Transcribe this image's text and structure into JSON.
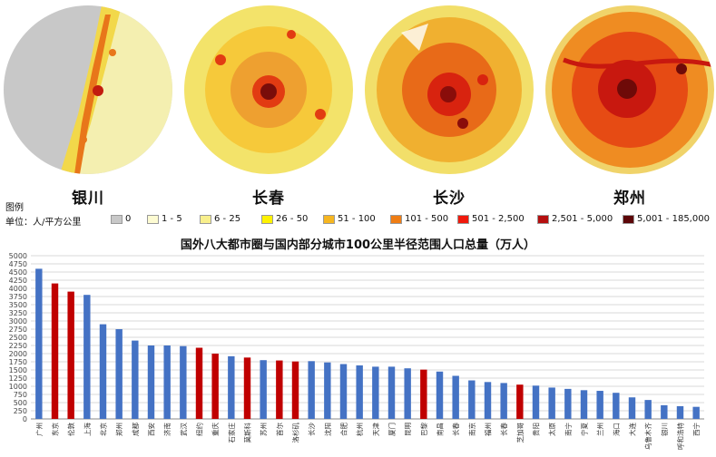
{
  "maps": [
    {
      "city": "银川",
      "colors": {
        "base": "#c8c8c8",
        "land": "#f4efb0",
        "mid": "#f2d84a",
        "hot": "#e8761a",
        "core": "#c21b0f"
      }
    },
    {
      "city": "长春",
      "colors": {
        "base": "#f3e36a",
        "land": "#f6c93a",
        "mid": "#eea030",
        "hot": "#e23b12",
        "core": "#7a0d0a"
      }
    },
    {
      "city": "长沙",
      "colors": {
        "base": "#f2df6a",
        "land": "#f0b030",
        "mid": "#e86a18",
        "hot": "#d8230f",
        "core": "#8a0d0a"
      }
    },
    {
      "city": "郑州",
      "colors": {
        "base": "#f0d36a",
        "land": "#ef8c22",
        "mid": "#e64b14",
        "hot": "#c8180f",
        "core": "#6e0a08"
      }
    }
  ],
  "legend": {
    "heading": "图例",
    "unit": "单位：人/平方公里",
    "items": [
      {
        "label": "0",
        "color": "#c8c8c8"
      },
      {
        "label": "1 - 5",
        "color": "#fdfbd2"
      },
      {
        "label": "6 - 25",
        "color": "#f8ef8c"
      },
      {
        "label": "26 - 50",
        "color": "#fef200"
      },
      {
        "label": "51 - 100",
        "color": "#f6b620"
      },
      {
        "label": "101 - 500",
        "color": "#ef7d14"
      },
      {
        "label": "501 - 2,500",
        "color": "#f0190c"
      },
      {
        "label": "2,501 - 5,000",
        "color": "#b50f0f"
      },
      {
        "label": "5,001 - 185,000",
        "color": "#5c0608"
      }
    ]
  },
  "chart_data": {
    "type": "bar",
    "title": "国外八大都市圈与国内部分城市100公里半径范围人口总量（万人）",
    "ylim": [
      0,
      5000
    ],
    "yticks": [
      0,
      250,
      500,
      750,
      1000,
      1250,
      1500,
      1750,
      2000,
      2250,
      2500,
      2750,
      3000,
      3250,
      3500,
      3750,
      4000,
      4250,
      4500,
      4750,
      5000
    ],
    "colors": {
      "domestic": "#4472c4",
      "foreign": "#c00000"
    },
    "categories": [
      "广州",
      "东京",
      "伦敦",
      "上海",
      "北京",
      "郑州",
      "成都",
      "西安",
      "济南",
      "武汉",
      "纽约",
      "重庆",
      "石家庄",
      "莫斯科",
      "苏州",
      "首尔",
      "洛杉矶",
      "长沙",
      "沈阳",
      "合肥",
      "杭州",
      "天津",
      "厦门",
      "昆明",
      "巴黎",
      "南昌",
      "长春",
      "南京",
      "福州",
      "长春",
      "芝加哥",
      "贵阳",
      "太原",
      "南宁",
      "宁夏",
      "兰州",
      "海口",
      "大连",
      "乌鲁木齐",
      "银川",
      "呼和浩特",
      "西宁"
    ],
    "values": [
      4600,
      4150,
      3900,
      3800,
      2900,
      2750,
      2400,
      2250,
      2250,
      2230,
      2180,
      2000,
      1920,
      1880,
      1800,
      1790,
      1760,
      1770,
      1730,
      1680,
      1640,
      1600,
      1600,
      1550,
      1510,
      1450,
      1320,
      1180,
      1130,
      1100,
      1050,
      1020,
      960,
      920,
      880,
      860,
      800,
      660,
      580,
      420,
      390,
      370
    ],
    "groups": [
      "domestic",
      "foreign",
      "foreign",
      "domestic",
      "domestic",
      "domestic",
      "domestic",
      "domestic",
      "domestic",
      "domestic",
      "foreign",
      "foreign",
      "domestic",
      "foreign",
      "domestic",
      "foreign",
      "foreign",
      "domestic",
      "domestic",
      "domestic",
      "domestic",
      "domestic",
      "domestic",
      "domestic",
      "foreign",
      "domestic",
      "domestic",
      "domestic",
      "domestic",
      "domestic",
      "foreign",
      "domestic",
      "domestic",
      "domestic",
      "domestic",
      "domestic",
      "domestic",
      "domestic",
      "domestic",
      "domestic",
      "domestic",
      "domestic"
    ]
  }
}
